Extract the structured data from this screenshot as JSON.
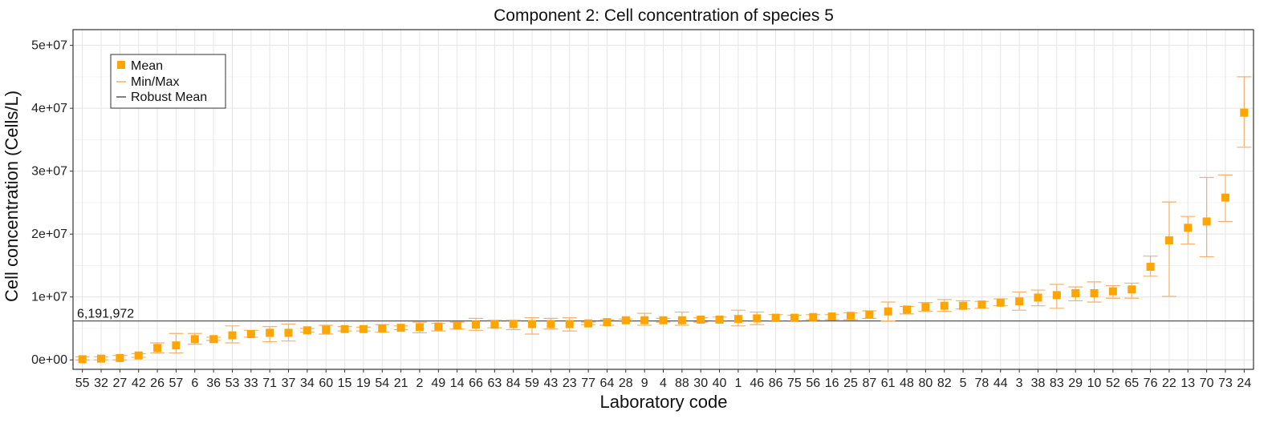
{
  "chart_data": {
    "type": "scatter",
    "title": "Component 2: Cell concentration of species 5",
    "xlabel": "Laboratory code",
    "ylabel": "Cell concentration (Cells/L)",
    "ylim": [
      -1500000,
      52500000
    ],
    "y_ticks": [
      0,
      10000000,
      20000000,
      30000000,
      40000000,
      50000000
    ],
    "y_tick_labels": [
      "0e+00",
      "1e+07",
      "2e+07",
      "3e+07",
      "4e+07",
      "5e+07"
    ],
    "grid": true,
    "legend_position": "top-left",
    "legend": [
      "Mean",
      "Min/Max",
      "Robust Mean"
    ],
    "reference_line": {
      "name": "Robust Mean",
      "value": 6191972,
      "label": "6,191,972"
    },
    "colors": {
      "mean": "#FFA500",
      "minmax": "#F4B06C",
      "robust": "#555555"
    },
    "categories": [
      "55",
      "32",
      "27",
      "42",
      "26",
      "57",
      "6",
      "36",
      "53",
      "33",
      "71",
      "37",
      "34",
      "60",
      "15",
      "19",
      "54",
      "21",
      "2",
      "49",
      "14",
      "66",
      "63",
      "84",
      "59",
      "43",
      "23",
      "77",
      "64",
      "28",
      "9",
      "4",
      "88",
      "30",
      "40",
      "1",
      "46",
      "86",
      "75",
      "56",
      "16",
      "25",
      "87",
      "61",
      "48",
      "80",
      "82",
      "5",
      "78",
      "44",
      "3",
      "38",
      "83",
      "29",
      "10",
      "52",
      "65",
      "76",
      "22",
      "13",
      "70",
      "73",
      "24"
    ],
    "series": [
      {
        "name": "Mean",
        "values": [
          100000,
          200000,
          300000,
          700000,
          1900000,
          2300000,
          3300000,
          3300000,
          3900000,
          4100000,
          4300000,
          4300000,
          4700000,
          4800000,
          4900000,
          4900000,
          5000000,
          5100000,
          5200000,
          5300000,
          5500000,
          5600000,
          5600000,
          5700000,
          5700000,
          5700000,
          5700000,
          5800000,
          6000000,
          6300000,
          6300000,
          6300000,
          6300000,
          6400000,
          6400000,
          6500000,
          6600000,
          6700000,
          6700000,
          6800000,
          6900000,
          7000000,
          7200000,
          7700000,
          8000000,
          8400000,
          8600000,
          8600000,
          8800000,
          9100000,
          9300000,
          9900000,
          10300000,
          10600000,
          10600000,
          10900000,
          11200000,
          14800000,
          19000000,
          21000000,
          22000000,
          25800000,
          39300000
        ]
      },
      {
        "name": "Min/Max",
        "min": [
          0,
          0,
          0,
          400000,
          1100000,
          1100000,
          2500000,
          3100000,
          2700000,
          3600000,
          2900000,
          3000000,
          4400000,
          4100000,
          4600000,
          4600000,
          4400000,
          4800000,
          4300000,
          4600000,
          4900000,
          4700000,
          5100000,
          4800000,
          4100000,
          4900000,
          4600000,
          5600000,
          5500000,
          6100000,
          5500000,
          6000000,
          5500000,
          6000000,
          6100000,
          5400000,
          5600000,
          6100000,
          6100000,
          6400000,
          6400000,
          6400000,
          6600000,
          6200000,
          7300000,
          7700000,
          7700000,
          8100000,
          8200000,
          8600000,
          7900000,
          8600000,
          8200000,
          9400000,
          9200000,
          9800000,
          9800000,
          13300000,
          10100000,
          18400000,
          16400000,
          22000000,
          33800000
        ],
        "max": [
          500000,
          500000,
          700000,
          1000000,
          2700000,
          4200000,
          4200000,
          3600000,
          5400000,
          4700000,
          5300000,
          5700000,
          5000000,
          5500000,
          5300000,
          5200000,
          5600000,
          5400000,
          6000000,
          5800000,
          6000000,
          6600000,
          6300000,
          6300000,
          6700000,
          6600000,
          6700000,
          6000000,
          6400000,
          6500000,
          7400000,
          6600000,
          7600000,
          6700000,
          6800000,
          7900000,
          7600000,
          7200000,
          7100000,
          7200000,
          7200000,
          7500000,
          7800000,
          9200000,
          8500000,
          9100000,
          9600000,
          9400000,
          9300000,
          9700000,
          10800000,
          11100000,
          12000000,
          11600000,
          12400000,
          11800000,
          12200000,
          16500000,
          25100000,
          22800000,
          29000000,
          29400000,
          45000000
        ]
      }
    ]
  }
}
